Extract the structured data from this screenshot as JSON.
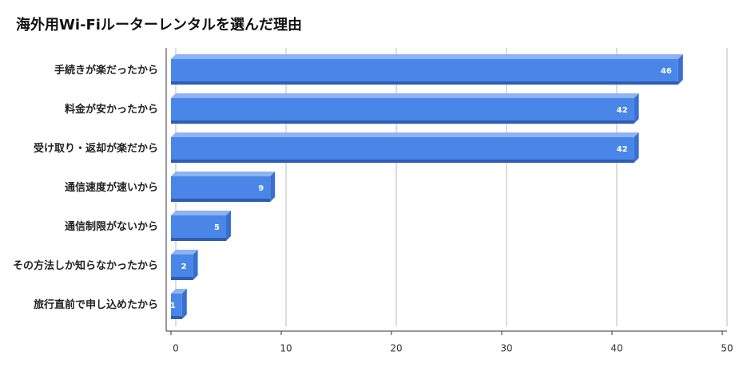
{
  "chart_data": {
    "type": "bar",
    "orientation": "horizontal",
    "title": "海外用Wi-Fiルーターレンタルを選んだ理由",
    "categories": [
      "手続きが楽だったから",
      "料金が安かったから",
      "受け取り・返却が楽だから",
      "通信速度が速いから",
      "通信制限がないから",
      "その方法しか知らなかったから",
      "旅行直前で申し込めたから"
    ],
    "values": [
      46,
      42,
      42,
      9,
      5,
      2,
      1
    ],
    "color": "#4a86e8",
    "xlim": [
      0,
      50
    ],
    "xticks": [
      0,
      10,
      20,
      30,
      40,
      50
    ],
    "grid": true
  }
}
